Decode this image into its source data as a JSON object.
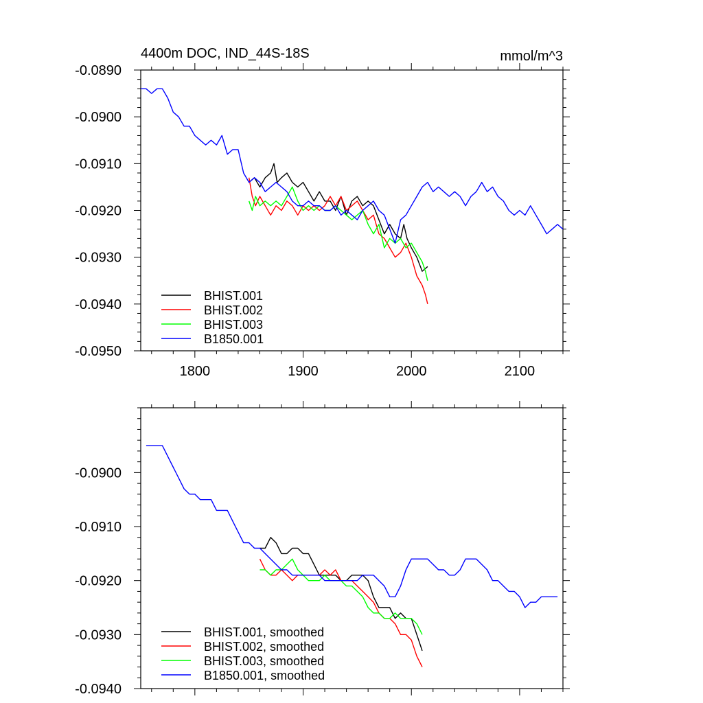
{
  "chart_data": [
    {
      "type": "line",
      "title_left": "4400m DOC, IND_44S-18S",
      "title_right": "mmol/m^3",
      "xlim": [
        1750,
        2140
      ],
      "ylim": [
        -0.095,
        -0.089
      ],
      "xticks": [
        1800,
        1900,
        2000,
        2100
      ],
      "xtick_labels": [
        "1800",
        "1900",
        "2000",
        "2100"
      ],
      "yticks": [
        -0.089,
        -0.09,
        -0.091,
        -0.092,
        -0.093,
        -0.094,
        -0.095
      ],
      "ytick_labels": [
        "-0.0890",
        "-0.0900",
        "-0.0910",
        "-0.0920",
        "-0.0930",
        "-0.0940",
        "-0.0950"
      ],
      "legend_position": "bottom-left",
      "series": [
        {
          "name": "BHIST.001",
          "color": "#000000",
          "x": [
            1850,
            1855,
            1860,
            1865,
            1870,
            1873,
            1876,
            1880,
            1885,
            1890,
            1895,
            1900,
            1905,
            1910,
            1915,
            1920,
            1925,
            1930,
            1935,
            1940,
            1945,
            1950,
            1955,
            1960,
            1965,
            1970,
            1975,
            1980,
            1985,
            1990,
            1993,
            1996,
            2000,
            2005,
            2010,
            2015
          ],
          "values": [
            -0.0914,
            -0.0913,
            -0.0915,
            -0.0913,
            -0.0912,
            -0.091,
            -0.0914,
            -0.0913,
            -0.0912,
            -0.0914,
            -0.0915,
            -0.0914,
            -0.0916,
            -0.0918,
            -0.0916,
            -0.0918,
            -0.0918,
            -0.092,
            -0.0917,
            -0.0921,
            -0.0918,
            -0.0917,
            -0.0919,
            -0.0918,
            -0.0919,
            -0.0922,
            -0.0925,
            -0.0923,
            -0.0925,
            -0.0926,
            -0.0923,
            -0.0926,
            -0.0928,
            -0.093,
            -0.0933,
            -0.0932
          ]
        },
        {
          "name": "BHIST.002",
          "color": "#ff0000",
          "x": [
            1850,
            1853,
            1856,
            1860,
            1865,
            1870,
            1875,
            1880,
            1885,
            1890,
            1895,
            1900,
            1905,
            1910,
            1915,
            1920,
            1925,
            1930,
            1935,
            1940,
            1945,
            1950,
            1955,
            1960,
            1965,
            1970,
            1975,
            1980,
            1985,
            1990,
            1995,
            2000,
            2005,
            2010,
            2013,
            2015
          ],
          "values": [
            -0.0913,
            -0.0917,
            -0.0919,
            -0.0917,
            -0.0919,
            -0.0921,
            -0.0919,
            -0.092,
            -0.0918,
            -0.0919,
            -0.0921,
            -0.0919,
            -0.092,
            -0.0919,
            -0.092,
            -0.0919,
            -0.0917,
            -0.0919,
            -0.0917,
            -0.092,
            -0.0919,
            -0.0918,
            -0.092,
            -0.0922,
            -0.0921,
            -0.0925,
            -0.0926,
            -0.0928,
            -0.093,
            -0.0929,
            -0.0927,
            -0.093,
            -0.0934,
            -0.0936,
            -0.0938,
            -0.094
          ]
        },
        {
          "name": "BHIST.003",
          "color": "#00ff00",
          "x": [
            1850,
            1853,
            1856,
            1860,
            1865,
            1870,
            1875,
            1880,
            1885,
            1890,
            1895,
            1900,
            1905,
            1910,
            1915,
            1920,
            1925,
            1930,
            1935,
            1940,
            1945,
            1950,
            1955,
            1960,
            1965,
            1970,
            1975,
            1980,
            1985,
            1990,
            1995,
            2000,
            2005,
            2010,
            2013,
            2015
          ],
          "values": [
            -0.0918,
            -0.092,
            -0.0917,
            -0.0919,
            -0.0918,
            -0.0919,
            -0.0918,
            -0.0919,
            -0.0917,
            -0.0915,
            -0.0918,
            -0.092,
            -0.0919,
            -0.092,
            -0.0919,
            -0.092,
            -0.092,
            -0.0919,
            -0.092,
            -0.0921,
            -0.0922,
            -0.0921,
            -0.092,
            -0.0923,
            -0.0925,
            -0.0923,
            -0.0928,
            -0.0926,
            -0.0927,
            -0.0926,
            -0.0928,
            -0.0927,
            -0.0929,
            -0.0931,
            -0.0933,
            -0.0935
          ]
        },
        {
          "name": "B1850.001",
          "color": "#0000ff",
          "x": [
            1750,
            1755,
            1760,
            1765,
            1770,
            1775,
            1780,
            1785,
            1790,
            1795,
            1800,
            1805,
            1810,
            1815,
            1820,
            1825,
            1830,
            1835,
            1840,
            1845,
            1850,
            1855,
            1860,
            1865,
            1870,
            1875,
            1880,
            1885,
            1890,
            1895,
            1900,
            1905,
            1910,
            1915,
            1920,
            1925,
            1930,
            1935,
            1940,
            1945,
            1950,
            1955,
            1960,
            1965,
            1970,
            1975,
            1980,
            1985,
            1990,
            1995,
            2000,
            2005,
            2010,
            2015,
            2020,
            2025,
            2030,
            2035,
            2040,
            2045,
            2050,
            2055,
            2060,
            2065,
            2070,
            2075,
            2080,
            2085,
            2090,
            2095,
            2100,
            2105,
            2110,
            2115,
            2120,
            2125,
            2130,
            2135,
            2140
          ],
          "values": [
            -0.0894,
            -0.0894,
            -0.0895,
            -0.0894,
            -0.0894,
            -0.0896,
            -0.0899,
            -0.09,
            -0.0902,
            -0.0902,
            -0.0904,
            -0.0905,
            -0.0906,
            -0.0905,
            -0.0906,
            -0.0904,
            -0.0908,
            -0.0907,
            -0.0907,
            -0.0912,
            -0.0914,
            -0.0913,
            -0.0914,
            -0.0916,
            -0.0915,
            -0.0914,
            -0.0915,
            -0.0916,
            -0.0918,
            -0.0919,
            -0.0919,
            -0.0918,
            -0.0919,
            -0.0919,
            -0.092,
            -0.092,
            -0.0919,
            -0.0921,
            -0.092,
            -0.0921,
            -0.0922,
            -0.092,
            -0.0919,
            -0.0918,
            -0.092,
            -0.0921,
            -0.0924,
            -0.0927,
            -0.0922,
            -0.0921,
            -0.0919,
            -0.0917,
            -0.0915,
            -0.0914,
            -0.0916,
            -0.0915,
            -0.0916,
            -0.0917,
            -0.0916,
            -0.0917,
            -0.0919,
            -0.0917,
            -0.0916,
            -0.0914,
            -0.0916,
            -0.0915,
            -0.0917,
            -0.0918,
            -0.092,
            -0.0921,
            -0.092,
            -0.0921,
            -0.0919,
            -0.0921,
            -0.0923,
            -0.0925,
            -0.0924,
            -0.0923,
            -0.0924
          ]
        }
      ]
    },
    {
      "type": "line",
      "title_left": "",
      "title_right": "",
      "xlim": [
        1750,
        2140
      ],
      "ylim": [
        -0.094,
        -0.0888
      ],
      "xticks": [
        1800,
        1900,
        2000,
        2100
      ],
      "xtick_labels": [
        "",
        "",
        "",
        ""
      ],
      "yticks": [
        -0.09,
        -0.091,
        -0.092,
        -0.093,
        -0.094
      ],
      "ytick_labels": [
        "-0.0900",
        "-0.0910",
        "-0.0920",
        "-0.0930",
        "-0.0940"
      ],
      "legend_position": "bottom-left",
      "series": [
        {
          "name": "BHIST.001, smoothed",
          "color": "#000000",
          "x": [
            1860,
            1865,
            1870,
            1875,
            1880,
            1885,
            1890,
            1895,
            1900,
            1905,
            1910,
            1915,
            1920,
            1925,
            1930,
            1935,
            1940,
            1945,
            1950,
            1955,
            1960,
            1965,
            1970,
            1975,
            1980,
            1985,
            1990,
            1995,
            2000,
            2005,
            2010
          ],
          "values": [
            -0.0914,
            -0.0914,
            -0.0912,
            -0.0913,
            -0.0915,
            -0.0915,
            -0.0914,
            -0.0914,
            -0.0915,
            -0.0915,
            -0.0917,
            -0.0919,
            -0.0919,
            -0.0919,
            -0.0919,
            -0.092,
            -0.092,
            -0.0919,
            -0.0919,
            -0.0919,
            -0.092,
            -0.0923,
            -0.0925,
            -0.0925,
            -0.0925,
            -0.0927,
            -0.0926,
            -0.0927,
            -0.0927,
            -0.093,
            -0.0933
          ]
        },
        {
          "name": "BHIST.002, smoothed",
          "color": "#ff0000",
          "x": [
            1860,
            1865,
            1870,
            1875,
            1880,
            1885,
            1890,
            1895,
            1900,
            1905,
            1910,
            1915,
            1920,
            1925,
            1930,
            1935,
            1940,
            1945,
            1950,
            1955,
            1960,
            1965,
            1970,
            1975,
            1980,
            1985,
            1990,
            1995,
            2000,
            2005,
            2010
          ],
          "values": [
            -0.0916,
            -0.0918,
            -0.0919,
            -0.0919,
            -0.0918,
            -0.0919,
            -0.092,
            -0.0919,
            -0.0919,
            -0.0919,
            -0.0919,
            -0.0919,
            -0.0918,
            -0.0919,
            -0.0918,
            -0.092,
            -0.092,
            -0.092,
            -0.0921,
            -0.0922,
            -0.0923,
            -0.0924,
            -0.0926,
            -0.0927,
            -0.0927,
            -0.0928,
            -0.093,
            -0.093,
            -0.0931,
            -0.0934,
            -0.0936
          ]
        },
        {
          "name": "BHIST.003, smoothed",
          "color": "#00ff00",
          "x": [
            1860,
            1865,
            1870,
            1875,
            1880,
            1885,
            1890,
            1895,
            1900,
            1905,
            1910,
            1915,
            1920,
            1925,
            1930,
            1935,
            1940,
            1945,
            1950,
            1955,
            1960,
            1965,
            1970,
            1975,
            1980,
            1985,
            1990,
            1995,
            2000,
            2005,
            2010
          ],
          "values": [
            -0.0918,
            -0.0918,
            -0.0919,
            -0.0918,
            -0.0918,
            -0.0917,
            -0.0916,
            -0.0918,
            -0.0919,
            -0.092,
            -0.092,
            -0.092,
            -0.0919,
            -0.092,
            -0.092,
            -0.092,
            -0.0921,
            -0.0921,
            -0.0922,
            -0.0923,
            -0.0925,
            -0.0926,
            -0.0926,
            -0.0927,
            -0.0927,
            -0.0926,
            -0.0927,
            -0.0927,
            -0.0927,
            -0.0928,
            -0.093
          ]
        },
        {
          "name": "B1850.001, smoothed",
          "color": "#0000ff",
          "x": [
            1755,
            1760,
            1765,
            1770,
            1775,
            1780,
            1785,
            1790,
            1795,
            1800,
            1805,
            1810,
            1815,
            1820,
            1825,
            1830,
            1835,
            1840,
            1845,
            1850,
            1855,
            1860,
            1865,
            1870,
            1875,
            1880,
            1885,
            1890,
            1895,
            1900,
            1905,
            1910,
            1915,
            1920,
            1925,
            1930,
            1935,
            1940,
            1945,
            1950,
            1955,
            1960,
            1965,
            1970,
            1975,
            1980,
            1985,
            1990,
            1995,
            2000,
            2005,
            2010,
            2015,
            2020,
            2025,
            2030,
            2035,
            2040,
            2045,
            2050,
            2055,
            2060,
            2065,
            2070,
            2075,
            2080,
            2085,
            2090,
            2095,
            2100,
            2105,
            2110,
            2115,
            2120,
            2125,
            2130,
            2135
          ],
          "values": [
            -0.0895,
            -0.0895,
            -0.0895,
            -0.0895,
            -0.0897,
            -0.0899,
            -0.0901,
            -0.0903,
            -0.0904,
            -0.0904,
            -0.0905,
            -0.0905,
            -0.0905,
            -0.0907,
            -0.0907,
            -0.0907,
            -0.0909,
            -0.0911,
            -0.0913,
            -0.0913,
            -0.0914,
            -0.0914,
            -0.0915,
            -0.0916,
            -0.0917,
            -0.0918,
            -0.0918,
            -0.0919,
            -0.0919,
            -0.0919,
            -0.0919,
            -0.0919,
            -0.0919,
            -0.092,
            -0.092,
            -0.092,
            -0.092,
            -0.092,
            -0.092,
            -0.092,
            -0.0919,
            -0.0919,
            -0.0919,
            -0.092,
            -0.0921,
            -0.0923,
            -0.0923,
            -0.0921,
            -0.0918,
            -0.0916,
            -0.0916,
            -0.0916,
            -0.0916,
            -0.0917,
            -0.0918,
            -0.0918,
            -0.0919,
            -0.0919,
            -0.0918,
            -0.0916,
            -0.0916,
            -0.0916,
            -0.0917,
            -0.0918,
            -0.092,
            -0.092,
            -0.0921,
            -0.0922,
            -0.0922,
            -0.0923,
            -0.0925,
            -0.0924,
            -0.0924,
            -0.0923,
            -0.0923,
            -0.0923,
            -0.0923
          ]
        }
      ]
    }
  ]
}
